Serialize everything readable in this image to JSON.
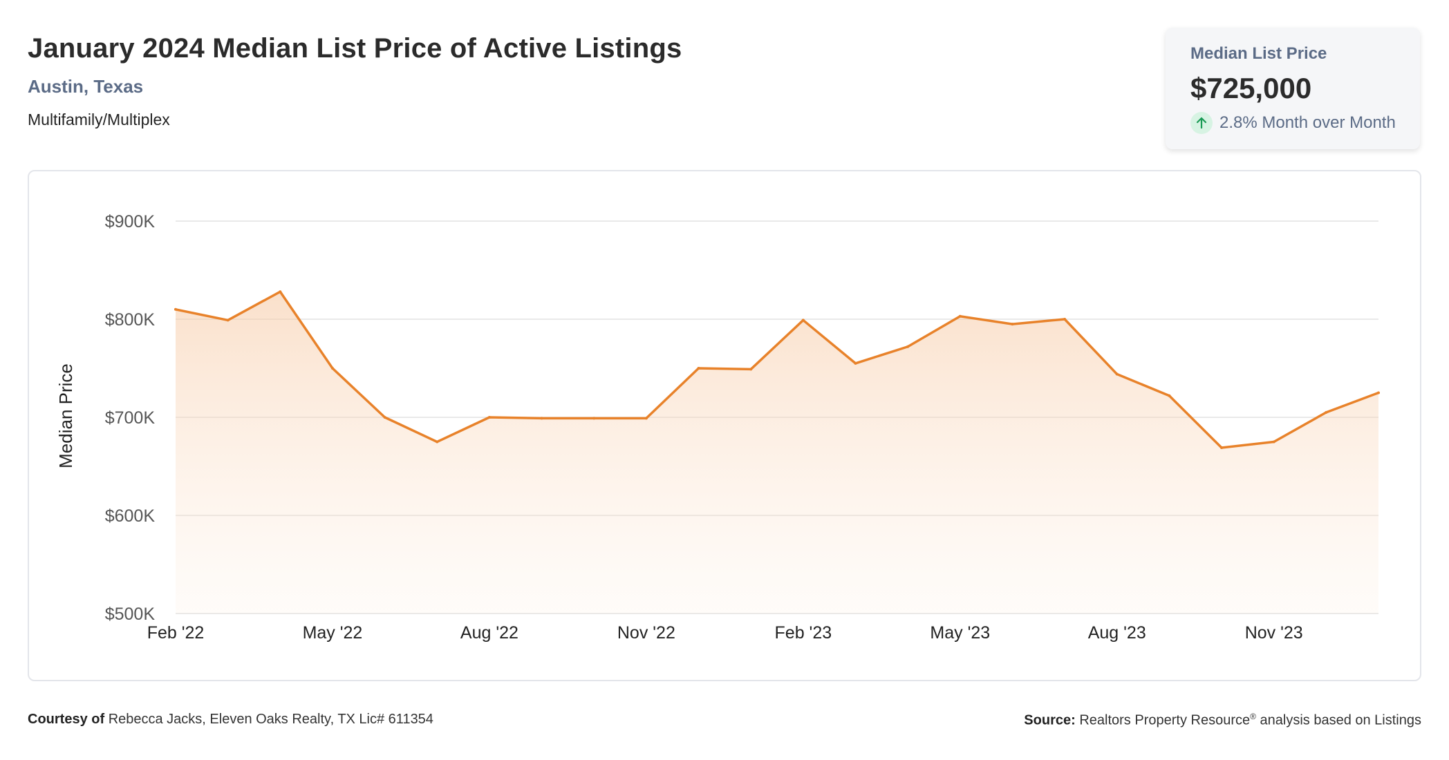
{
  "header": {
    "title": "January 2024 Median List Price of Active Listings",
    "location": "Austin, Texas",
    "property_type": "Multifamily/Multiplex"
  },
  "kpi": {
    "label": "Median List Price",
    "value": "$725,000",
    "change": "2.8% Month over Month",
    "icon": "arrow-up-icon",
    "icon_color": "#1a9a55"
  },
  "footer": {
    "courtesy_label": "Courtesy of",
    "courtesy_text": "Rebecca Jacks, Eleven Oaks Realty, TX Lic# 611354",
    "source_label": "Source:",
    "source_text_1": "Realtors Property Resource",
    "source_sup": "®",
    "source_text_2": " analysis based on Listings"
  },
  "chart_data": {
    "type": "area",
    "ylabel": "Median Price",
    "ylim": [
      500000,
      900000
    ],
    "y_ticks": [
      {
        "value": 900000,
        "label": "$900K"
      },
      {
        "value": 800000,
        "label": "$800K"
      },
      {
        "value": 700000,
        "label": "$700K"
      },
      {
        "value": 600000,
        "label": "$600K"
      },
      {
        "value": 500000,
        "label": "$500K"
      }
    ],
    "x_tick_labels": [
      "Feb '22",
      "May '22",
      "Aug '22",
      "Nov '22",
      "Feb '23",
      "May '23",
      "Aug '23",
      "Nov '23"
    ],
    "x_tick_months": [
      "2022-02",
      "2022-05",
      "2022-08",
      "2022-11",
      "2023-02",
      "2023-05",
      "2023-08",
      "2023-11"
    ],
    "grid": true,
    "line_color": "#e8822a",
    "series": [
      {
        "x": [
          "2022-02",
          "2022-03",
          "2022-04",
          "2022-05",
          "2022-06",
          "2022-07",
          "2022-08",
          "2022-09",
          "2022-10",
          "2022-11",
          "2022-12",
          "2023-01",
          "2023-02",
          "2023-03",
          "2023-04",
          "2023-05",
          "2023-06",
          "2023-07",
          "2023-08",
          "2023-09",
          "2023-10",
          "2023-11",
          "2023-12",
          "2024-01"
        ],
        "values": [
          810000,
          799000,
          828000,
          750000,
          700000,
          675000,
          700000,
          699000,
          699000,
          699000,
          750000,
          749000,
          799000,
          755000,
          772000,
          803000,
          795000,
          800000,
          744000,
          722000,
          669000,
          675000,
          705000,
          725000
        ]
      }
    ]
  }
}
